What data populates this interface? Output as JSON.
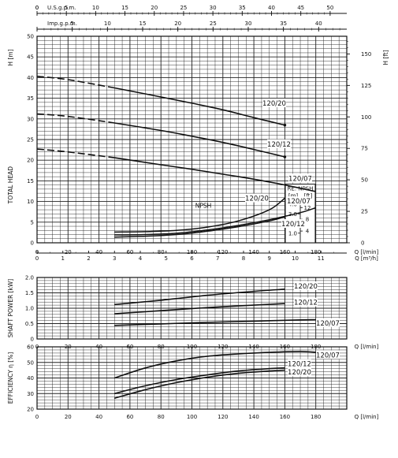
{
  "top_axes": {
    "usgpm": {
      "label": "U.S.g.p.m.",
      "ticks": [
        "0",
        "5",
        "10",
        "15",
        "20",
        "25",
        "30",
        "35",
        "40",
        "45",
        "50"
      ],
      "values": [
        0,
        5,
        10,
        15,
        20,
        25,
        30,
        35,
        40,
        45,
        50
      ]
    },
    "impgpm": {
      "label": "Imp.g.p.m.",
      "ticks": [
        "0",
        "5",
        "10",
        "15",
        "20",
        "25",
        "30",
        "35",
        "40"
      ],
      "values": [
        0,
        5,
        10,
        15,
        20,
        25,
        30,
        35,
        40
      ]
    }
  },
  "chart_data": [
    {
      "type": "line",
      "ylabel_outer": "TOTAL HEAD",
      "ylabel": "H [m]",
      "ylabel_right": "H [ft]",
      "ylim": [
        0,
        50
      ],
      "yticks": [
        "0",
        "5",
        "10",
        "15",
        "20",
        "25",
        "30",
        "35",
        "40",
        "45",
        "50"
      ],
      "ft_ticks": [
        "0",
        "25",
        "50",
        "75",
        "100",
        "125",
        "150"
      ],
      "npsh_axis": {
        "label_top": "RE. NPSH",
        "label_m": "[m]",
        "label_ft": "[ft]",
        "m_ticks": [
          "1.0",
          "2.0",
          "3.0",
          "4.0"
        ],
        "ft_ticks": [
          "4",
          "8",
          "12"
        ]
      },
      "x_q_lmin": {
        "label": "Q [l/min]",
        "ticks": [
          "0",
          "20",
          "40",
          "60",
          "80",
          "100",
          "120",
          "140",
          "160",
          "180"
        ]
      },
      "x_q_m3h": {
        "label": "Q [m³/h]",
        "ticks": [
          "0",
          "1",
          "2",
          "3",
          "4",
          "5",
          "6",
          "7",
          "8",
          "9",
          "10",
          "11"
        ]
      },
      "npsh_label": "NPSH",
      "series": [
        {
          "name": "120/20",
          "x": [
            0,
            20,
            50,
            80,
            100,
            120,
            140,
            160
          ],
          "y": [
            40.3,
            39.5,
            37.5,
            35.3,
            33.8,
            32.2,
            30.3,
            28.5
          ]
        },
        {
          "name": "120/12",
          "x": [
            0,
            20,
            50,
            80,
            100,
            120,
            140,
            160
          ],
          "y": [
            31.2,
            30.6,
            29.0,
            27.2,
            25.8,
            24.3,
            22.6,
            20.8
          ]
        },
        {
          "name": "120/07",
          "x": [
            0,
            20,
            50,
            80,
            100,
            120,
            140,
            160,
            180
          ],
          "y": [
            22.7,
            22.0,
            20.6,
            18.9,
            17.8,
            16.6,
            15.4,
            14.0,
            12.4
          ]
        },
        {
          "name": "120/20",
          "x": [
            50,
            70,
            90,
            110,
            130,
            150,
            160
          ],
          "y": [
            2.6,
            2.7,
            3.0,
            3.8,
            5.3,
            8.0,
            10.8
          ]
        },
        {
          "name": "120/07",
          "x": [
            50,
            70,
            90,
            110,
            130,
            150,
            170,
            180
          ],
          "y": [
            1.9,
            2.0,
            2.3,
            3.1,
            4.2,
            5.6,
            7.3,
            8.5
          ]
        },
        {
          "name": "120/12",
          "x": [
            50,
            70,
            90,
            110,
            130,
            150,
            160
          ],
          "y": [
            1.4,
            1.6,
            2.0,
            2.8,
            3.9,
            5.3,
            6.3
          ]
        }
      ]
    },
    {
      "type": "line",
      "ylabel": "SHAFT POWER [kW]",
      "ylim": [
        0,
        2.0
      ],
      "yticks": [
        "0",
        "0.5",
        "1.0",
        "1.5",
        "2.0"
      ],
      "x_q_lmin": {
        "label": "Q [l/min]",
        "ticks": [
          "0",
          "20",
          "40",
          "60",
          "80",
          "100",
          "120",
          "140",
          "160",
          "180"
        ]
      },
      "series": [
        {
          "name": "120/20",
          "x": [
            50,
            80,
            110,
            140,
            160
          ],
          "y": [
            1.12,
            1.26,
            1.42,
            1.55,
            1.62
          ]
        },
        {
          "name": "120/12",
          "x": [
            50,
            80,
            110,
            140,
            160
          ],
          "y": [
            0.82,
            0.92,
            1.02,
            1.1,
            1.15
          ]
        },
        {
          "name": "120/07",
          "x": [
            50,
            80,
            110,
            140,
            170,
            180
          ],
          "y": [
            0.44,
            0.49,
            0.54,
            0.58,
            0.62,
            0.63
          ]
        }
      ]
    },
    {
      "type": "line",
      "ylabel": "EFFICIENCY η [%]",
      "ylim": [
        20,
        60
      ],
      "yticks": [
        "20",
        "30",
        "40",
        "50",
        "60"
      ],
      "x_q_lmin": {
        "label": "Q [l/min]",
        "ticks": [
          "0",
          "20",
          "40",
          "60",
          "80",
          "100",
          "120",
          "140",
          "160",
          "180"
        ]
      },
      "series": [
        {
          "name": "120/07",
          "x": [
            50,
            70,
            90,
            110,
            130,
            150,
            170,
            180
          ],
          "y": [
            40,
            46.5,
            51,
            54,
            55.5,
            56.5,
            57,
            56.5
          ]
        },
        {
          "name": "120/12",
          "x": [
            50,
            70,
            90,
            110,
            130,
            150,
            160
          ],
          "y": [
            30,
            35,
            39,
            42,
            44.5,
            46,
            46.5
          ]
        },
        {
          "name": "120/20",
          "x": [
            50,
            70,
            90,
            110,
            130,
            150,
            160
          ],
          "y": [
            27,
            32.5,
            37,
            40.5,
            43,
            44.5,
            45
          ]
        }
      ]
    }
  ]
}
